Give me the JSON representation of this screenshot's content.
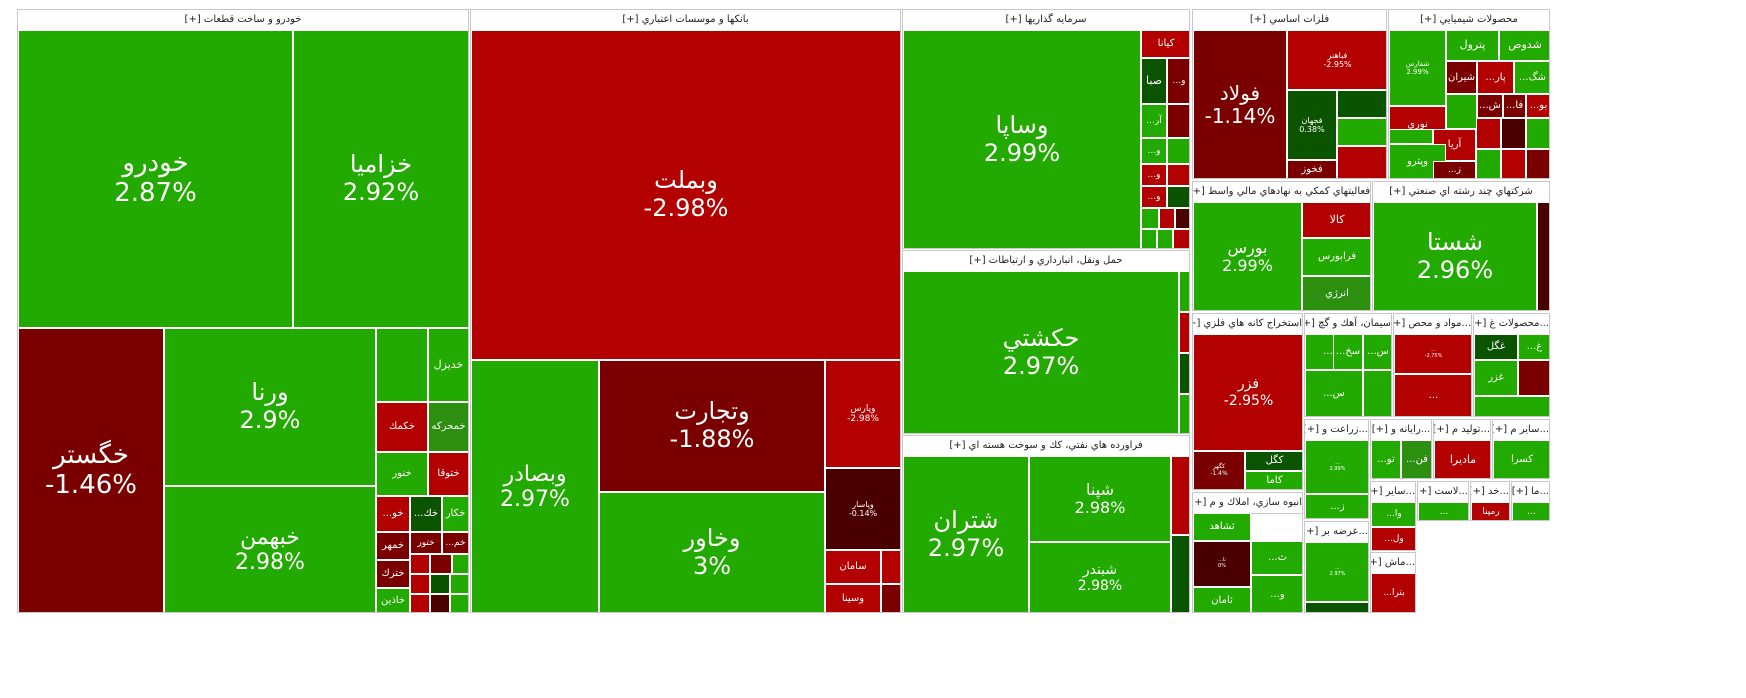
{
  "colors": {
    "strong_green": "#22aa00",
    "green": "#2c8f10",
    "dark_green": "#0a5400",
    "red": "#b30000",
    "dark_red": "#7a0000",
    "darkest_red": "#4b0000"
  },
  "chart_data": {
    "type": "treemap",
    "title": "",
    "sectors": [
      {
        "name": "خودرو و ساخت قطعات [+]",
        "tiles": [
          {
            "symbol": "خودرو",
            "change": "2.87%",
            "value": 2.87
          },
          {
            "symbol": "خزاميا",
            "change": "2.92%",
            "value": 2.92
          },
          {
            "symbol": "خگستر",
            "change": "-1.46%",
            "value": -1.46
          },
          {
            "symbol": "ورنا",
            "change": "2.9%",
            "value": 2.9
          },
          {
            "symbol": "خبهمن",
            "change": "2.98%",
            "value": 2.98
          },
          {
            "symbol": "خديزل",
            "change": "",
            "value": 2.5
          },
          {
            "symbol": "خمحركه",
            "change": "",
            "value": 1.2
          },
          {
            "symbol": "خكمك",
            "change": "",
            "value": -2.0
          },
          {
            "symbol": "خنور",
            "change": "",
            "value": 2.4
          },
          {
            "symbol": "ختوقا",
            "change": "",
            "value": -2.2
          },
          {
            "symbol": "خكار",
            "change": "",
            "value": 2.2
          },
          {
            "symbol": "...خك",
            "change": "",
            "value": 0.5
          },
          {
            "symbol": "...خو",
            "change": "",
            "value": -2.1
          },
          {
            "symbol": "خمهر",
            "change": "",
            "value": -1.0
          },
          {
            "symbol": "ختور",
            "change": "",
            "value": -1.1
          },
          {
            "symbol": "...خم",
            "change": "",
            "value": -1.2
          },
          {
            "symbol": "خترك",
            "change": "",
            "value": -1.3
          },
          {
            "symbol": "خاذين",
            "change": "",
            "value": 2.3
          }
        ]
      },
      {
        "name": "بانكها و موسسات اعتباري [+]",
        "tiles": [
          {
            "symbol": "وبملت",
            "change": "-2.98%",
            "value": -2.98
          },
          {
            "symbol": "وبصادر",
            "change": "2.97%",
            "value": 2.97
          },
          {
            "symbol": "وتجارت",
            "change": "-1.88%",
            "value": -1.88
          },
          {
            "symbol": "وپارس",
            "change": "-2.98%",
            "value": -2.98
          },
          {
            "symbol": "وخاور",
            "change": "3%",
            "value": 3.0
          },
          {
            "symbol": "وپاسار",
            "change": "-0.14%",
            "value": -0.14
          },
          {
            "symbol": "سامان",
            "change": "",
            "value": -2.5
          },
          {
            "symbol": "وسينا",
            "change": "",
            "value": -2.6
          }
        ]
      },
      {
        "name": "سرمايه گذاريها [+]",
        "tiles": [
          {
            "symbol": "وساپا",
            "change": "2.99%",
            "value": 2.99
          },
          {
            "symbol": "كيانا",
            "change": "",
            "value": -2.7
          },
          {
            "symbol": "صبا",
            "change": "",
            "value": 0.6
          },
          {
            "symbol": "...و",
            "change": "",
            "value": -1.5
          },
          {
            "symbol": "...آر",
            "change": "",
            "value": 2.0
          },
          {
            "symbol": "...و",
            "change": "",
            "value": 2.1
          },
          {
            "symbol": "...و",
            "change": "",
            "value": -2.2
          },
          {
            "symbol": "...و",
            "change": "",
            "value": -2.4
          }
        ]
      },
      {
        "name": "حمل ونقل، انبارداري و ارتباطات [+]",
        "tiles": [
          {
            "symbol": "حكشتي",
            "change": "2.97%",
            "value": 2.97
          }
        ]
      },
      {
        "name": "فراورده هاي نفتي، كك و سوخت هسته اي [+]",
        "tiles": [
          {
            "symbol": "شتران",
            "change": "2.97%",
            "value": 2.97
          },
          {
            "symbol": "شپنا",
            "change": "2.98%",
            "value": 2.98
          },
          {
            "symbol": "شبندر",
            "change": "2.98%",
            "value": 2.98
          }
        ]
      },
      {
        "name": "فلزات اساسي [+]",
        "tiles": [
          {
            "symbol": "فولاد",
            "change": "-1.14%",
            "value": -1.14
          },
          {
            "symbol": "فباهنر",
            "change": "-2.95%",
            "value": -2.95
          },
          {
            "symbol": "فجهان",
            "change": "0.38%",
            "value": 0.38
          },
          {
            "symbol": "فخوز",
            "change": "",
            "value": -1.8
          }
        ]
      },
      {
        "name": "محصولات شيميايي [+]",
        "tiles": [
          {
            "symbol": "شفارس",
            "change": "2.99%",
            "value": 2.99
          },
          {
            "symbol": "پترول",
            "change": "",
            "value": 2.6
          },
          {
            "symbol": "شدوص",
            "change": "",
            "value": 2.7
          },
          {
            "symbol": "شيران",
            "change": "",
            "value": -1.6
          },
          {
            "symbol": "...پار",
            "change": "",
            "value": -2.4
          },
          {
            "symbol": "...شگ",
            "change": "",
            "value": 2.5
          },
          {
            "symbol": "...ش",
            "change": "",
            "value": -1.4
          },
          {
            "symbol": "...فا",
            "change": "",
            "value": -1.0
          },
          {
            "symbol": "...بو",
            "change": "",
            "value": -2.1
          },
          {
            "symbol": "نوري",
            "change": "",
            "value": -2.6
          },
          {
            "symbol": "آريا",
            "change": "",
            "value": -2.3
          },
          {
            "symbol": "وپترو",
            "change": "",
            "value": 2.6
          },
          {
            "symbol": "...ز",
            "change": "",
            "value": -1.3
          }
        ]
      },
      {
        "name": "فعاليتهاي كمكي به نهادهاي مالي واسط [+]",
        "tiles": [
          {
            "symbol": "بورس",
            "change": "2.99%",
            "value": 2.99
          },
          {
            "symbol": "كالا",
            "change": "",
            "value": -2.7
          },
          {
            "symbol": "فرابورس",
            "change": "",
            "value": 2.6
          },
          {
            "symbol": "انرژي",
            "change": "",
            "value": 1.4
          }
        ]
      },
      {
        "name": "شركتهاي چند رشته اي صنعتي [+]",
        "tiles": [
          {
            "symbol": "شستا",
            "change": "2.96%",
            "value": 2.96
          }
        ]
      },
      {
        "name": "استخراج كانه هاي فلزي [+]",
        "tiles": [
          {
            "symbol": "فزر",
            "change": "-2.95%",
            "value": -2.95
          },
          {
            "symbol": "كگهر",
            "change": "-1.4%",
            "value": -1.4
          },
          {
            "symbol": "كگل",
            "change": "",
            "value": 0.7
          },
          {
            "symbol": "كاما",
            "change": "",
            "value": 2.4
          }
        ]
      },
      {
        "name": "سيمان، آهك و گچ [+]",
        "tiles": [
          {
            "symbol": "...س",
            "change": "",
            "value": 2.3
          },
          {
            "symbol": "...سخ",
            "change": "",
            "value": 2.2
          },
          {
            "symbol": "...س",
            "change": "",
            "value": 2.1
          },
          {
            "symbol": "...س",
            "change": "",
            "value": 2.0
          }
        ]
      },
      {
        "name": "...مواد و محص [+]",
        "tiles": [
          {
            "symbol": "...",
            "change": "-2.75%",
            "value": -2.75
          },
          {
            "symbol": "...",
            "change": "",
            "value": -2.2
          }
        ]
      },
      {
        "name": "...محصولات غ [+]",
        "tiles": [
          {
            "symbol": "غگل",
            "change": "",
            "value": 0.6
          },
          {
            "symbol": "...غ",
            "change": "",
            "value": 2.3
          },
          {
            "symbol": "غزر",
            "change": "",
            "value": 2.4
          }
        ]
      },
      {
        "name": "انبوه سازي، املاك و م [+]...",
        "tiles": [
          {
            "symbol": "ثشاهد",
            "change": "",
            "value": 2.5
          },
          {
            "symbol": "...ثا",
            "change": "0%",
            "value": 0
          },
          {
            "symbol": "...ث",
            "change": "",
            "value": 2.2
          },
          {
            "symbol": "...و",
            "change": "",
            "value": 2.1
          },
          {
            "symbol": "ثامان",
            "change": "",
            "value": 2.6
          }
        ]
      },
      {
        "name": "...زراعت و [+]",
        "tiles": [
          {
            "symbol": "...",
            "change": "2.99%",
            "value": 2.99
          },
          {
            "symbol": "...ز",
            "change": "",
            "value": 2.1
          }
        ]
      },
      {
        "name": "...عرضه بر [+]",
        "tiles": [
          {
            "symbol": "...",
            "change": "2.97%",
            "value": 2.97
          }
        ]
      },
      {
        "name": "...رايانه و [+]",
        "tiles": [
          {
            "symbol": "...تو",
            "change": "",
            "value": 2.2
          },
          {
            "symbol": "...فن",
            "change": "",
            "value": 1.3
          }
        ]
      },
      {
        "name": "...توليد م [+]",
        "tiles": [
          {
            "symbol": "ماديرا",
            "change": "",
            "value": -2.7
          }
        ]
      },
      {
        "name": "...ساير م [+]",
        "tiles": [
          {
            "symbol": "كسرا",
            "change": "",
            "value": 2.4
          }
        ]
      },
      {
        "name": "...ساير [+]",
        "tiles": [
          {
            "symbol": "...وا",
            "change": "",
            "value": 2.1
          },
          {
            "symbol": "...ول",
            "change": "",
            "value": -2.0
          }
        ]
      },
      {
        "name": "...لاست [+]",
        "tiles": [
          {
            "symbol": "...",
            "change": "",
            "value": 2.0
          }
        ]
      },
      {
        "name": "...خد [+]",
        "tiles": [
          {
            "symbol": "رمپنا",
            "change": "",
            "value": -2.4
          }
        ]
      },
      {
        "name": "...ما [+]",
        "tiles": [
          {
            "symbol": "...",
            "change": "",
            "value": 2.0
          }
        ]
      },
      {
        "name": "...ماش [+]",
        "tiles": [
          {
            "symbol": "...بترا",
            "change": "",
            "value": -2.1
          }
        ]
      }
    ]
  }
}
